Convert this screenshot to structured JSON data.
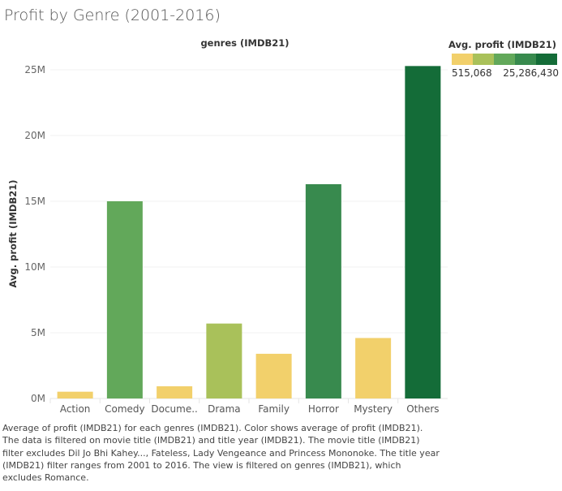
{
  "title": "Profit by Genre (2001-2016)",
  "caption": "Average of profit (IMDB21) for each genres (IMDB21).  Color shows average of profit (IMDB21). The data is filtered on movie title (IMDB21) and title year (IMDB21). The movie title (IMDB21) filter excludes Dil Jo Bhi Kahey..., Fateless, Lady Vengeance and Princess Mononoke. The title year (IMDB21) filter ranges from 2001 to 2016. The view is filtered on genres (IMDB21), which excludes Romance.",
  "legend": {
    "title": "Avg. profit (IMDB21)",
    "min_label": "515,068",
    "max_label": "25,286,430",
    "colors": [
      "#f2d06b",
      "#a9c15a",
      "#62a85a",
      "#388a4e",
      "#146c38"
    ]
  },
  "chart_data": {
    "type": "bar",
    "title": "Profit by Genre (2001-2016)",
    "column_header": "genres (IMDB21)",
    "xlabel": "",
    "ylabel": "Avg. profit (IMDB21)",
    "categories": [
      "Action",
      "Comedy",
      "Docume..",
      "Drama",
      "Family",
      "Horror",
      "Mystery",
      "Others"
    ],
    "values": [
      515068,
      15000000,
      930000,
      5700000,
      3400000,
      16300000,
      4600000,
      25286430
    ],
    "ylim": [
      0,
      25000000
    ],
    "yticks": [
      0,
      5000000,
      10000000,
      15000000,
      20000000,
      25000000
    ],
    "ytick_labels": [
      "0M",
      "5M",
      "10M",
      "15M",
      "20M",
      "25M"
    ],
    "bar_colors": [
      "#f2d06b",
      "#62a85a",
      "#f2d06b",
      "#a9c15a",
      "#f2d06b",
      "#388a4e",
      "#f2d06b",
      "#146c38"
    ],
    "grid": true,
    "legend_position": "top-right"
  }
}
